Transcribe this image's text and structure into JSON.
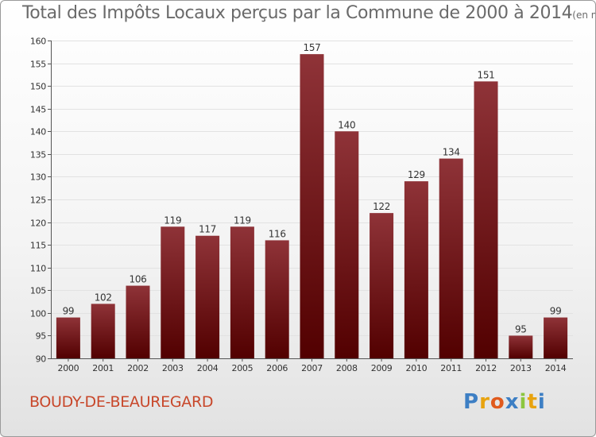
{
  "title": "Total des Impôts Locaux perçus par la Commune de 2000 à 2014",
  "unit_note": "(en milliers d'€)",
  "commune": "BOUDY-DE-BEAUREGARD",
  "logo": {
    "text": "Proxiti",
    "letters": [
      "P",
      "r",
      "o",
      "x",
      "i",
      "t",
      "i"
    ],
    "letter_colors": [
      "#3d7fc4",
      "#e8a30f",
      "#e05a1d",
      "#3d7fc4",
      "#8cc63f",
      "#e8a30f",
      "#3d7fc4"
    ]
  },
  "colors": {
    "bar_top": "#8f3338",
    "bar_bottom": "#520000",
    "grid": "#e2e2e2",
    "axis": "#555555",
    "text": "#333333"
  },
  "chart_data": {
    "type": "bar",
    "title": "Total des Impôts Locaux perçus par la Commune de 2000 à 2014",
    "xlabel": "",
    "ylabel": "",
    "categories": [
      "2000",
      "2001",
      "2002",
      "2003",
      "2004",
      "2005",
      "2006",
      "2007",
      "2008",
      "2009",
      "2010",
      "2011",
      "2012",
      "2013",
      "2014"
    ],
    "values": [
      99,
      102,
      106,
      119,
      117,
      119,
      116,
      157,
      140,
      122,
      129,
      134,
      151,
      95,
      99
    ],
    "ylim": [
      90,
      160
    ],
    "yticks": [
      90,
      95,
      100,
      105,
      110,
      115,
      120,
      125,
      130,
      135,
      140,
      145,
      150,
      155,
      160
    ],
    "grid": true,
    "data_labels": true
  }
}
